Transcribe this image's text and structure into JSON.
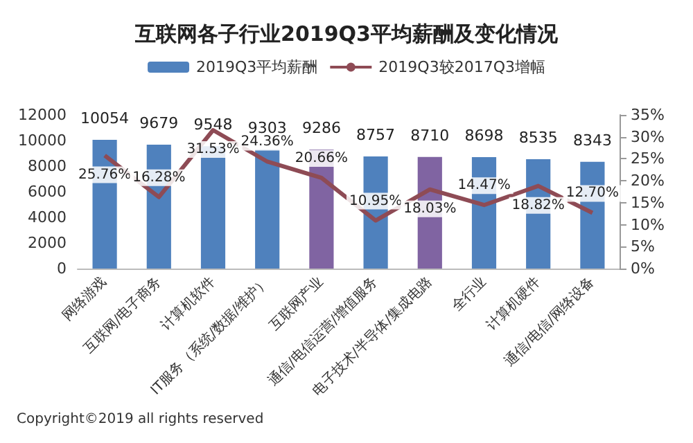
{
  "chart_data": {
    "type": "bar",
    "title": "互联网各子行业2019Q3平均薪酬及变化情况",
    "categories": [
      "网络游戏",
      "互联网/电子商务",
      "计算机软件",
      "IT服务（系统/数据/维护）",
      "互联网产业",
      "通信/电信运营/增值服务",
      "电子技术/半导体/集成电路",
      "全行业",
      "计算机硬件",
      "通信/电信/网络设备"
    ],
    "series": [
      {
        "name": "2019Q3平均薪酬",
        "color": "#4f81bd",
        "colors": [
          "#4f81bd",
          "#4f81bd",
          "#4f81bd",
          "#4f81bd",
          "#8064a2",
          "#4f81bd",
          "#8064a2",
          "#4f81bd",
          "#4f81bd",
          "#4f81bd"
        ],
        "values": [
          10054,
          9679,
          9548,
          9303,
          9286,
          8757,
          8710,
          8698,
          8535,
          8343
        ]
      },
      {
        "name": "2019Q3较2017Q3增幅",
        "type": "line",
        "axis": "y2",
        "color": "#8e4b55",
        "values": [
          25.76,
          16.28,
          31.53,
          24.36,
          20.66,
          10.95,
          18.03,
          14.47,
          18.82,
          12.7
        ],
        "value_labels": [
          "25.76%",
          "16.28%",
          "31.53%",
          "24.36%",
          "20.66%",
          "10.95%",
          "18.03%",
          "14.47%",
          "18.82%",
          "12.70%"
        ]
      }
    ],
    "data_labels": true,
    "ylim": [
      0,
      12000
    ],
    "yticks": [
      0,
      2000,
      4000,
      6000,
      8000,
      10000,
      12000
    ],
    "y2lim": [
      0,
      35
    ],
    "y2ticks": [
      {
        "value": 0,
        "label": "0%"
      },
      {
        "value": 5,
        "label": "5%"
      },
      {
        "value": 10,
        "label": "10%"
      },
      {
        "value": 15,
        "label": "15%"
      },
      {
        "value": 20,
        "label": "20%"
      },
      {
        "value": 25,
        "label": "25%"
      },
      {
        "value": 30,
        "label": "30%"
      },
      {
        "value": 35,
        "label": "35%"
      }
    ],
    "grid": false,
    "legend": "top",
    "marker": "none",
    "line_style": "solid",
    "annotations": [
      "Copyright©2019 all rights reserved"
    ]
  }
}
